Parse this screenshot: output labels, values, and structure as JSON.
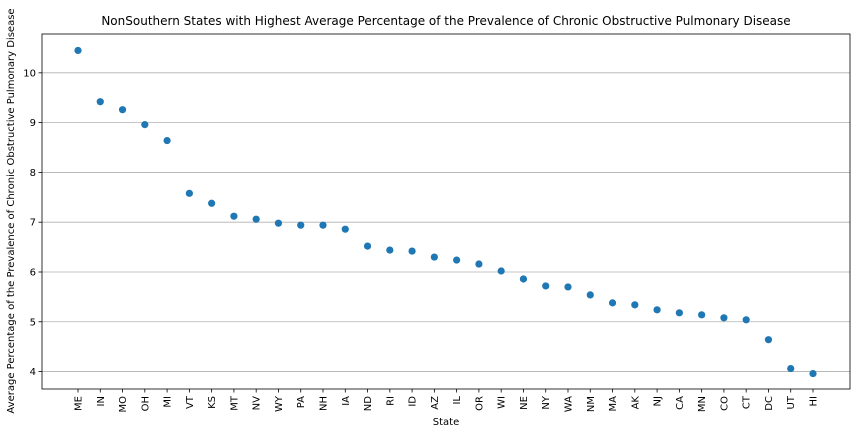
{
  "chart_data": {
    "type": "scatter",
    "title": "NonSouthern States with Highest Average Percentage  of the Prevalence of Chronic Obstructive Pulmonary Disease",
    "xlabel": "State",
    "ylabel": "Average Percentage of the Prevalence of Chronic Obstructive Pulmonary Disease",
    "categories": [
      "ME",
      "IN",
      "MO",
      "OH",
      "MI",
      "VT",
      "KS",
      "MT",
      "NV",
      "WY",
      "PA",
      "NH",
      "IA",
      "ND",
      "RI",
      "ID",
      "AZ",
      "IL",
      "OR",
      "WI",
      "NE",
      "NY",
      "WA",
      "NM",
      "MA",
      "AK",
      "NJ",
      "CA",
      "MN",
      "CO",
      "CT",
      "DC",
      "UT",
      "HI"
    ],
    "values": [
      10.45,
      9.42,
      9.26,
      8.96,
      8.64,
      7.58,
      7.38,
      7.12,
      7.06,
      6.98,
      6.94,
      6.94,
      6.86,
      6.52,
      6.44,
      6.42,
      6.3,
      6.24,
      6.16,
      6.02,
      5.86,
      5.72,
      5.7,
      5.54,
      5.38,
      5.34,
      5.24,
      5.18,
      5.14,
      5.08,
      5.04,
      4.64,
      4.06,
      3.96
    ],
    "yticks": [
      4,
      5,
      6,
      7,
      8,
      9,
      10
    ],
    "ylim": [
      3.65,
      10.78
    ],
    "grid": "horizontal",
    "marker_color": "#1f77b4"
  }
}
